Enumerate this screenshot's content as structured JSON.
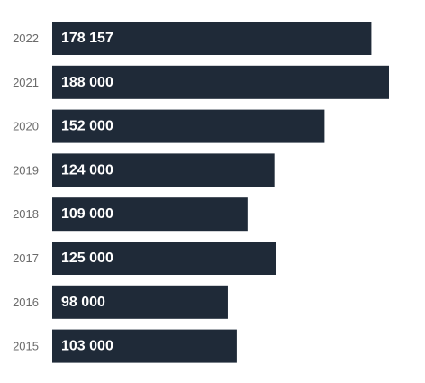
{
  "chart_data": {
    "type": "bar",
    "orientation": "horizontal",
    "categories": [
      "2022",
      "2021",
      "2020",
      "2019",
      "2018",
      "2017",
      "2016",
      "2015"
    ],
    "values": [
      178157,
      188000,
      152000,
      124000,
      109000,
      125000,
      98000,
      103000
    ],
    "value_labels": [
      "178 157",
      "188 000",
      "152 000",
      "124 000",
      "109 000",
      "125 000",
      "98 000",
      "103 000"
    ],
    "title": "",
    "xlabel": "",
    "ylabel": "",
    "grid": false,
    "legend": "none",
    "colors": {
      "bar": "#1f2a38",
      "value_text": "#ffffff",
      "category_text": "#6b6b6b"
    }
  }
}
